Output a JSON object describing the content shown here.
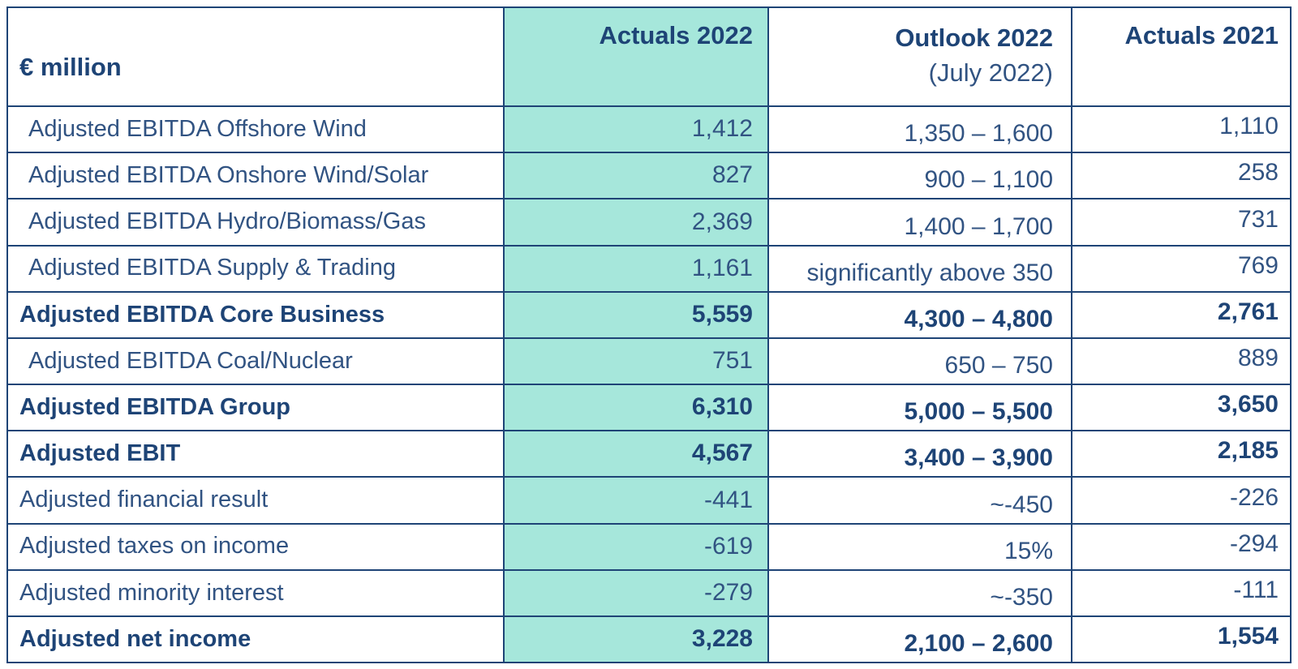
{
  "unit_header": "€ million",
  "columns": [
    {
      "label": "Actuals 2022",
      "sublabel": "",
      "highlighted": true
    },
    {
      "label": "Outlook 2022",
      "sublabel": "(July 2022)",
      "highlighted": false
    },
    {
      "label": "Actuals 2021",
      "sublabel": "",
      "highlighted": false
    }
  ],
  "rows": [
    {
      "label": "Adjusted EBITDA Offshore Wind",
      "actuals_2022": "1,412",
      "outlook_2022": "1,350 – 1,600",
      "actuals_2021": "1,110",
      "bold": false,
      "indented": true
    },
    {
      "label": "Adjusted EBITDA Onshore Wind/Solar",
      "actuals_2022": "827",
      "outlook_2022": "900 – 1,100",
      "actuals_2021": "258",
      "bold": false,
      "indented": true
    },
    {
      "label": "Adjusted EBITDA Hydro/Biomass/Gas",
      "actuals_2022": "2,369",
      "outlook_2022": "1,400 – 1,700",
      "actuals_2021": "731",
      "bold": false,
      "indented": true
    },
    {
      "label": "Adjusted EBITDA Supply & Trading",
      "actuals_2022": "1,161",
      "outlook_2022": "significantly above 350",
      "actuals_2021": "769",
      "bold": false,
      "indented": true
    },
    {
      "label": "Adjusted EBITDA Core Business",
      "actuals_2022": "5,559",
      "outlook_2022": "4,300 – 4,800",
      "actuals_2021": "2,761",
      "bold": true,
      "indented": false
    },
    {
      "label": "Adjusted EBITDA Coal/Nuclear",
      "actuals_2022": "751",
      "outlook_2022": "650 – 750",
      "actuals_2021": "889",
      "bold": false,
      "indented": true
    },
    {
      "label": "Adjusted EBITDA Group",
      "actuals_2022": "6,310",
      "outlook_2022": "5,000 – 5,500",
      "actuals_2021": "3,650",
      "bold": true,
      "indented": false
    },
    {
      "label": "Adjusted EBIT",
      "actuals_2022": "4,567",
      "outlook_2022": "3,400 – 3,900",
      "actuals_2021": "2,185",
      "bold": true,
      "indented": false
    },
    {
      "label": "Adjusted financial result",
      "actuals_2022": "-441",
      "outlook_2022": "~-450",
      "actuals_2021": "-226",
      "bold": false,
      "indented": false
    },
    {
      "label": "Adjusted taxes on income",
      "actuals_2022": "-619",
      "outlook_2022": "15%",
      "actuals_2021": "-294",
      "bold": false,
      "indented": false
    },
    {
      "label": "Adjusted minority interest",
      "actuals_2022": "-279",
      "outlook_2022": "~-350",
      "actuals_2021": "-111",
      "bold": false,
      "indented": false
    },
    {
      "label": "Adjusted net income",
      "actuals_2022": "3,228",
      "outlook_2022": "2,100 – 2,600",
      "actuals_2021": "1,554",
      "bold": true,
      "indented": false
    }
  ],
  "colors": {
    "navy": "#1e4476",
    "text": "#315382",
    "highlight_teal": "#a6e7db",
    "background": "#ffffff"
  }
}
